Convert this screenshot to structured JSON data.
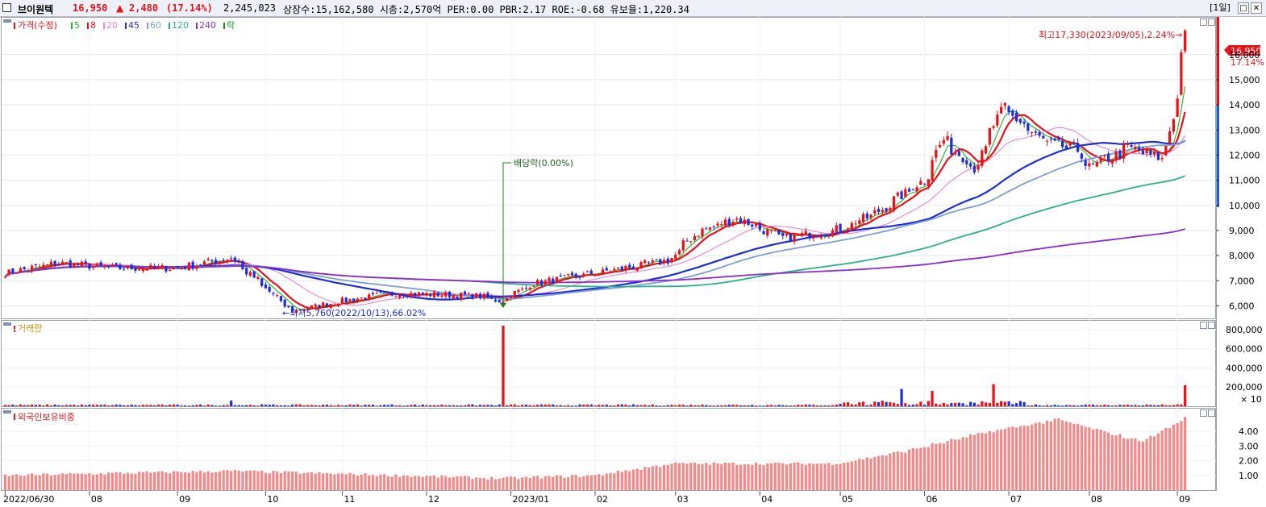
{
  "header": {
    "stock_name": "브이원텍",
    "price": "16,950",
    "change_arrow": "▲",
    "change": "2,480",
    "change_pct": "(17.14%)",
    "volume": "2,245,023",
    "info": "상장수:15,162,580 시총:2,570억 PER:0.00 PBR:2.17 ROE:-0.68 유보율:1,220.34",
    "period_button": "[1일]",
    "colors": {
      "up": "#e8121b",
      "down": "#0a3bd6"
    }
  },
  "price_panel": {
    "legend": {
      "price_label": "가격(수정)",
      "ma_items": [
        {
          "label": "5",
          "color": "#22b422"
        },
        {
          "label": "8",
          "color": "#e8121b"
        },
        {
          "label": "20",
          "color": "#e486d2"
        },
        {
          "label": "45",
          "color": "#1f2ddb"
        },
        {
          "label": "60",
          "color": "#7f9fd0"
        },
        {
          "label": "120",
          "color": "#2db08a"
        },
        {
          "label": "240",
          "color": "#8b2ed0"
        }
      ],
      "event_label": "락"
    },
    "yticks": [
      "6,000",
      "7,000",
      "8,000",
      "9,000",
      "10,000",
      "11,000",
      "12,000",
      "13,000",
      "14,000",
      "15,000",
      "16,000"
    ],
    "current_price_tag": "16,950",
    "current_pct_tag": "17.14%",
    "high_annotation": "최고17,330(2023/09/05),2.24%→",
    "low_annotation": "←최저5,760(2022/10/13),66.02%",
    "dividend_annotation": "배당락(0.00%)"
  },
  "volume_panel": {
    "title": "거래량",
    "yticks": [
      "200,000",
      "400,000",
      "600,000",
      "800,000"
    ],
    "unit": "× 10"
  },
  "foreign_panel": {
    "title": "외국인보유비중",
    "yticks": [
      "1.00",
      "2.00",
      "3.00",
      "4.00"
    ]
  },
  "xaxis": {
    "labels": [
      "2022/06/30",
      "08",
      "09",
      "10",
      "11",
      "12",
      "2023/01",
      "02",
      "03",
      "04",
      "05",
      "06",
      "07",
      "08",
      "09"
    ]
  },
  "chart_data": {
    "type": "candlestick",
    "x_range": [
      "2022/06/30",
      "2023/09/05"
    ],
    "price_ylim": [
      5500,
      17500
    ],
    "price_anchors": [
      [
        "2022/06/30",
        7300
      ],
      [
        "2022/07/20",
        7700
      ],
      [
        "2022/08/10",
        7500
      ],
      [
        "2022/09/01",
        7500
      ],
      [
        "2022/09/21",
        7900
      ],
      [
        "2022/10/13",
        5800
      ],
      [
        "2022/11/01",
        6200
      ],
      [
        "2022/11/20",
        6500
      ],
      [
        "2022/12/20",
        6400
      ],
      [
        "2022/12/28",
        6200
      ],
      [
        "2023/01/10",
        6900
      ],
      [
        "2023/02/01",
        7300
      ],
      [
        "2023/02/28",
        7800
      ],
      [
        "2023/03/10",
        8900
      ],
      [
        "2023/03/25",
        9500
      ],
      [
        "2023/04/10",
        8700
      ],
      [
        "2023/04/30",
        9000
      ],
      [
        "2023/05/15",
        9700
      ],
      [
        "2023/06/01",
        11000
      ],
      [
        "2023/06/08",
        12600
      ],
      [
        "2023/06/20",
        11500
      ],
      [
        "2023/06/30",
        13900
      ],
      [
        "2023/07/15",
        12500
      ],
      [
        "2023/07/27",
        12200
      ],
      [
        "2023/08/01",
        11500
      ],
      [
        "2023/08/15",
        12300
      ],
      [
        "2023/08/28",
        11800
      ],
      [
        "2023/09/01",
        14200
      ],
      [
        "2023/09/05",
        16950
      ]
    ],
    "moving_averages": [
      "5",
      "8",
      "20",
      "45",
      "60",
      "120",
      "240"
    ],
    "high": {
      "date": "2023/09/05",
      "value": 17330
    },
    "low": {
      "date": "2022/10/13",
      "value": 5760
    },
    "volume_spikes": [
      [
        "2022/09/21",
        60000
      ],
      [
        "2022/12/29",
        840000
      ],
      [
        "2023/05/24",
        180000
      ],
      [
        "2023/06/05",
        160000
      ],
      [
        "2023/06/27",
        230000
      ],
      [
        "2023/09/05",
        220000
      ]
    ],
    "foreign_ownership_anchors": [
      [
        "2022/06/30",
        1.0
      ],
      [
        "2022/09/21",
        1.3
      ],
      [
        "2022/12/29",
        0.8
      ],
      [
        "2023/02/01",
        1.0
      ],
      [
        "2023/03/01",
        1.8
      ],
      [
        "2023/04/30",
        1.8
      ],
      [
        "2023/05/24",
        2.6
      ],
      [
        "2023/06/26",
        4.0
      ],
      [
        "2023/07/20",
        4.8
      ],
      [
        "2023/08/20",
        3.3
      ],
      [
        "2023/09/05",
        4.9
      ]
    ],
    "foreign_ylim": [
      0,
      5.6
    ]
  }
}
